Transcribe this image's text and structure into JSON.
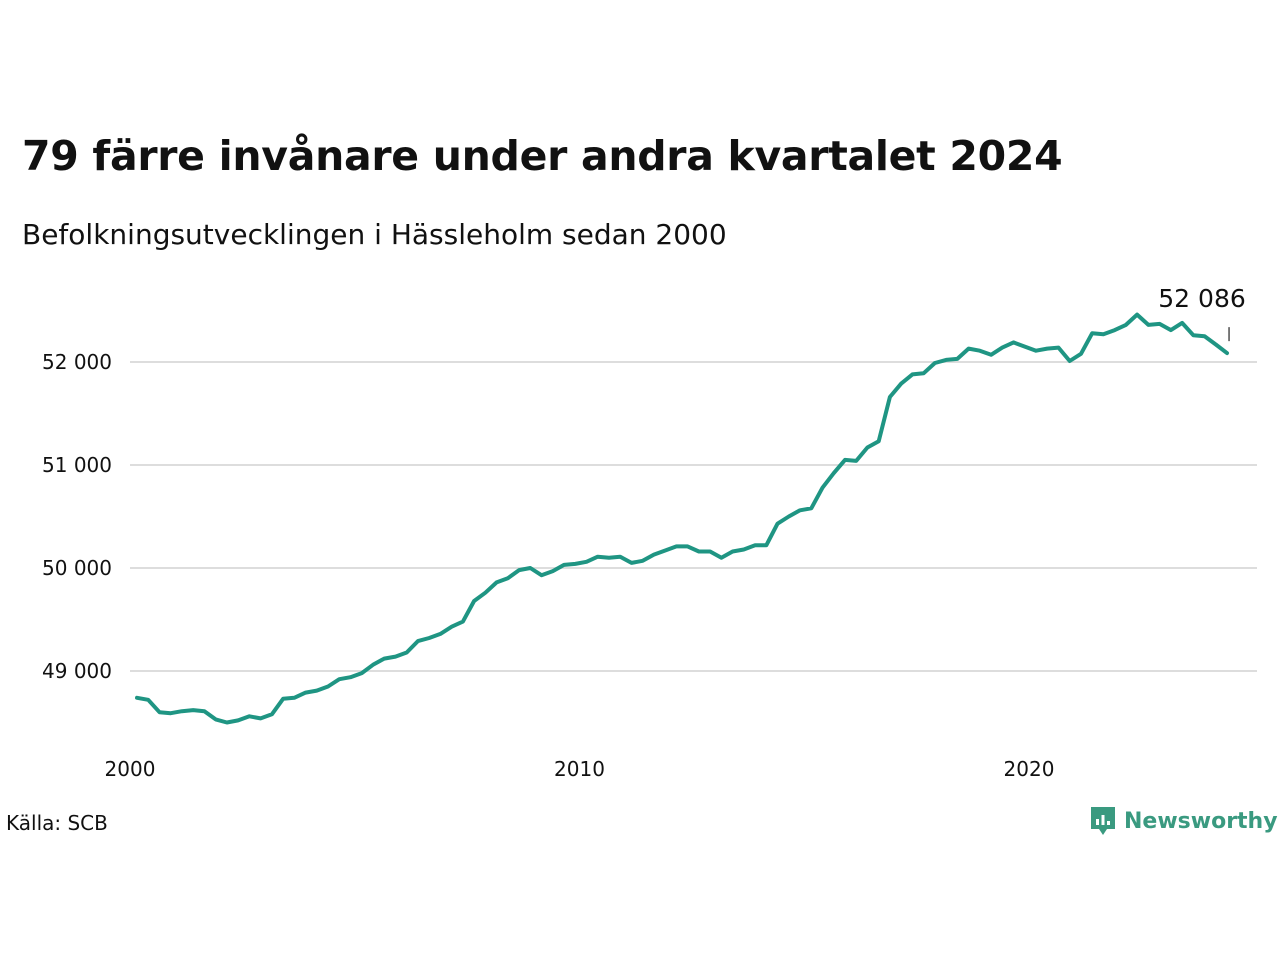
{
  "title": "79 färre invånare under andra kvartalet 2024",
  "subtitle": "Befolkningsutvecklingen i Hässleholm sedan 2000",
  "source": "Källa: SCB",
  "brand": {
    "name": "Newsworthy",
    "icon": "newsworthy-logo-icon",
    "color": "#3a9a80"
  },
  "colors": {
    "line": "#1f9583",
    "grid": "#dddddd"
  },
  "chart_data": {
    "type": "line",
    "xlim": [
      2000,
      2025
    ],
    "ylim": [
      48300,
      52600
    ],
    "grid": true,
    "x_ticks": [
      2000,
      2010,
      2020
    ],
    "x_tick_labels": [
      "2000",
      "2010",
      "2020"
    ],
    "y_ticks": [
      49000,
      50000,
      51000,
      52000
    ],
    "y_tick_labels": [
      "49 000",
      "50 000",
      "51 000",
      "52 000"
    ],
    "end_label": "52 086",
    "series": [
      {
        "x": [
          2000.0,
          2000.25,
          2000.5,
          2000.75,
          2001.0,
          2001.25,
          2001.5,
          2001.75,
          2002.0,
          2002.25,
          2002.5,
          2002.75,
          2003.0,
          2003.25,
          2003.5,
          2003.75,
          2004.0,
          2004.25,
          2004.5,
          2004.75,
          2005.0,
          2005.25,
          2005.5,
          2005.75,
          2006.0,
          2006.25,
          2006.5,
          2006.75,
          2007.0,
          2007.25,
          2007.5,
          2007.75,
          2008.0,
          2008.25,
          2008.5,
          2008.75,
          2009.0,
          2009.25,
          2009.5,
          2009.75,
          2010.0,
          2010.25,
          2010.5,
          2010.75,
          2011.0,
          2011.25,
          2011.5,
          2011.75,
          2012.0,
          2012.25,
          2012.5,
          2012.75,
          2013.0,
          2013.25,
          2013.5,
          2013.75,
          2014.0,
          2014.25,
          2014.5,
          2014.75,
          2015.0,
          2015.25,
          2015.5,
          2015.75,
          2016.0,
          2016.25,
          2016.5,
          2016.75,
          2017.0,
          2017.25,
          2017.5,
          2017.75,
          2018.0,
          2018.25,
          2018.5,
          2018.75,
          2019.0,
          2019.25,
          2019.5,
          2019.75,
          2020.0,
          2020.25,
          2020.5,
          2020.75,
          2021.0,
          2021.25,
          2021.5,
          2021.75,
          2022.0,
          2022.25,
          2022.5,
          2022.75,
          2023.0,
          2023.25,
          2023.5,
          2023.75,
          2024.0,
          2024.25
        ],
        "values": [
          48740,
          48720,
          48600,
          48590,
          48610,
          48620,
          48610,
          48530,
          48500,
          48520,
          48560,
          48540,
          48580,
          48730,
          48740,
          48790,
          48810,
          48850,
          48920,
          48940,
          48980,
          49060,
          49120,
          49140,
          49180,
          49290,
          49320,
          49360,
          49430,
          49480,
          49680,
          49760,
          49860,
          49900,
          49980,
          50000,
          49930,
          49970,
          50030,
          50040,
          50060,
          50110,
          50100,
          50110,
          50050,
          50070,
          50130,
          50170,
          50210,
          50210,
          50160,
          50160,
          50100,
          50160,
          50180,
          50220,
          50220,
          50430,
          50500,
          50560,
          50580,
          50780,
          50920,
          51050,
          51040,
          51170,
          51230,
          51660,
          51790,
          51880,
          51890,
          51990,
          52020,
          52030,
          52130,
          52110,
          52070,
          52140,
          52190,
          52150,
          52110,
          52130,
          52140,
          52010,
          52080,
          52280,
          52270,
          52310,
          52360,
          52460,
          52360,
          52370,
          52310,
          52380,
          52260,
          52250,
          52170,
          52086
        ]
      }
    ]
  }
}
